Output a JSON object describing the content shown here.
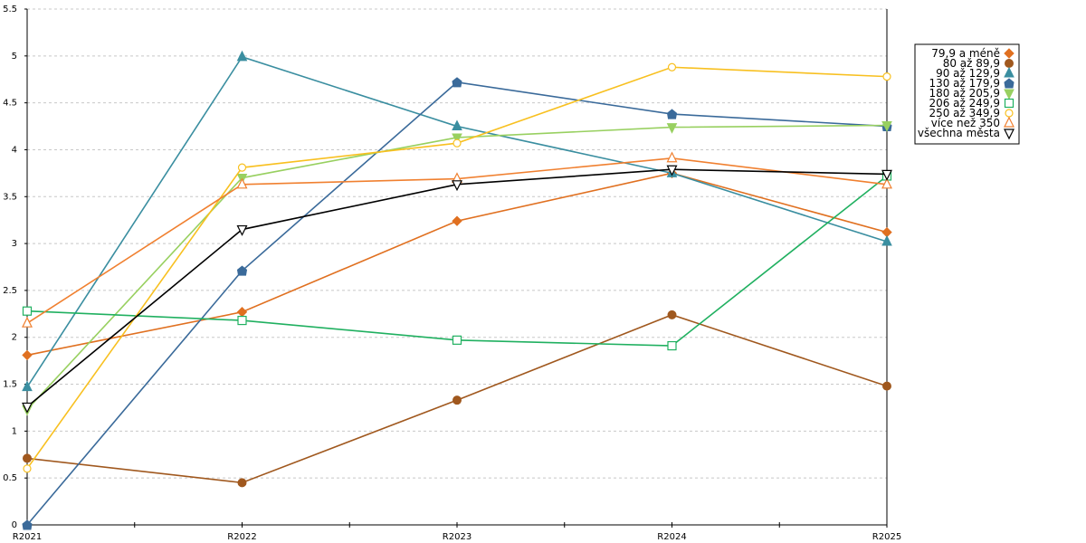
{
  "chart_data": {
    "type": "line",
    "categories": [
      "R2021",
      "R2022",
      "R2023",
      "R2024",
      "R2025"
    ],
    "ylim": [
      0,
      5.5
    ],
    "yticks": [
      0,
      0.5,
      1,
      1.5,
      2,
      2.5,
      3,
      3.5,
      4,
      4.5,
      5,
      5.5
    ],
    "ytick_labels": [
      "0",
      "0.5",
      "1",
      "1.5",
      "2",
      "2.5",
      "3",
      "3.5",
      "4",
      "4.5",
      "5",
      "5.5"
    ],
    "grid": "horizontal dashed",
    "legend_position": "right",
    "series": [
      {
        "name": "79,9 a méně",
        "color": "#e07020",
        "marker": "diamond-filled",
        "values": [
          1.81,
          2.27,
          3.24,
          3.75,
          3.12
        ]
      },
      {
        "name": "80 až 89,9",
        "color": "#a0581e",
        "marker": "circle-filled",
        "values": [
          0.71,
          0.45,
          1.33,
          2.24,
          1.48
        ]
      },
      {
        "name": "90 až 129,9",
        "color": "#3a8ea0",
        "marker": "triangle-up-filled",
        "values": [
          1.47,
          4.99,
          4.25,
          3.75,
          3.02
        ]
      },
      {
        "name": "130 až 179,9",
        "color": "#3a6a9a",
        "marker": "pentagon-filled",
        "values": [
          0.0,
          2.71,
          4.72,
          4.38,
          4.25
        ]
      },
      {
        "name": "180 až 205,9",
        "color": "#98d060",
        "marker": "triangle-down-filled",
        "values": [
          1.23,
          3.7,
          4.13,
          4.24,
          4.26
        ]
      },
      {
        "name": "206 až 249,9",
        "color": "#20b060",
        "marker": "square-open",
        "values": [
          2.28,
          2.18,
          1.97,
          1.91,
          3.72
        ]
      },
      {
        "name": "250 až 349,9",
        "color": "#f8c020",
        "marker": "circle-open",
        "values": [
          0.6,
          3.81,
          4.07,
          4.88,
          4.78
        ]
      },
      {
        "name": "více než 350",
        "color": "#f08030",
        "marker": "triangle-up-open",
        "values": [
          2.15,
          3.63,
          3.69,
          3.91,
          3.63
        ]
      },
      {
        "name": "všechna města",
        "color": "#000000",
        "marker": "triangle-down-open",
        "values": [
          1.26,
          3.15,
          3.63,
          3.79,
          3.74
        ]
      }
    ]
  }
}
